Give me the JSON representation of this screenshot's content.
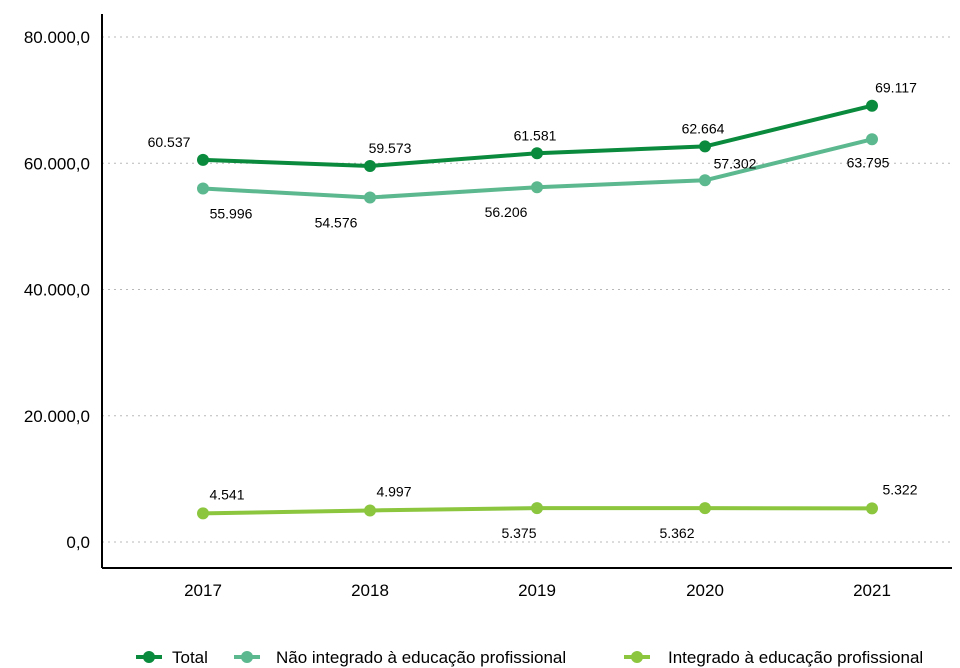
{
  "chart_data": {
    "type": "line",
    "categories": [
      "2017",
      "2018",
      "2019",
      "2020",
      "2021"
    ],
    "y_ticks": [
      "0,0",
      "20.000,0",
      "40.000,0",
      "60.000,0",
      "80.000,0"
    ],
    "ylim": [
      0,
      80000
    ],
    "grid": "horizontal dotted",
    "legend_position": "bottom",
    "series": [
      {
        "name": "Total",
        "color": "#0a8a3c",
        "values": [
          60537,
          59573,
          61581,
          62664,
          69117
        ],
        "labels": [
          "60.537",
          "59.573",
          "61.581",
          "62.664",
          "69.117"
        ]
      },
      {
        "name": "Não integrado à educação profissional",
        "color": "#5cb88f",
        "values": [
          55996,
          54576,
          56206,
          57302,
          63795
        ],
        "labels": [
          "55.996",
          "54.576",
          "56.206",
          "57.302",
          "63.795"
        ]
      },
      {
        "name": "Integrado à educação profissional",
        "color": "#8cc63f",
        "values": [
          4541,
          4997,
          5375,
          5362,
          5322
        ],
        "labels": [
          "4.541",
          "4.997",
          "5.375",
          "5.362",
          "5.322"
        ]
      }
    ]
  }
}
